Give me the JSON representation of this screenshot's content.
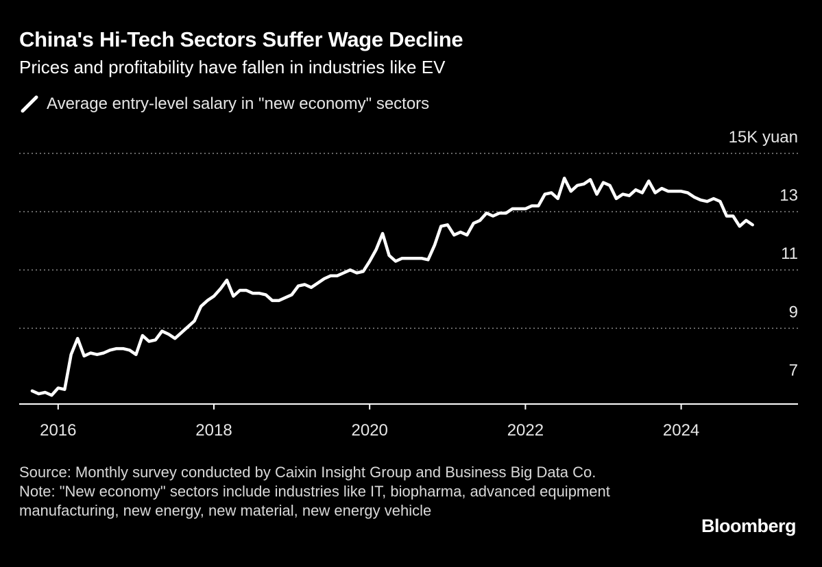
{
  "header": {
    "title": "China's Hi-Tech Sectors Suffer Wage Decline",
    "subtitle": "Prices and profitability have fallen in industries like EV"
  },
  "footer": {
    "source": "Source: Monthly survey conducted by Caixin Insight Group and Business Big Data Co.",
    "note": "Note: \"New economy\" sectors include industries like IT, biopharma, advanced equipment manufacturing, new energy, new material, new energy vehicle",
    "brand": "Bloomberg"
  },
  "colors": {
    "background": "#000000",
    "line": "#ffffff",
    "grid": "#8a8a8a",
    "axis": "#ffffff"
  },
  "chart_data": {
    "type": "line",
    "legend": {
      "position": "top-left"
    },
    "series": [
      {
        "name": "Average entry-level salary in \"new economy\" sectors",
        "unit": "yuan",
        "points": [
          [
            "2015-09",
            6.85
          ],
          [
            "2015-10",
            6.75
          ],
          [
            "2015-11",
            6.8
          ],
          [
            "2015-12",
            6.7
          ],
          [
            "2016-01",
            6.95
          ],
          [
            "2016-02",
            6.9
          ],
          [
            "2016-03",
            8.1
          ],
          [
            "2016-04",
            8.65
          ],
          [
            "2016-05",
            8.05
          ],
          [
            "2016-06",
            8.15
          ],
          [
            "2016-07",
            8.1
          ],
          [
            "2016-08",
            8.15
          ],
          [
            "2016-09",
            8.25
          ],
          [
            "2016-10",
            8.3
          ],
          [
            "2016-11",
            8.3
          ],
          [
            "2016-12",
            8.25
          ],
          [
            "2017-01",
            8.1
          ],
          [
            "2017-02",
            8.75
          ],
          [
            "2017-03",
            8.55
          ],
          [
            "2017-04",
            8.6
          ],
          [
            "2017-05",
            8.9
          ],
          [
            "2017-06",
            8.8
          ],
          [
            "2017-07",
            8.65
          ],
          [
            "2017-08",
            8.85
          ],
          [
            "2017-09",
            9.05
          ],
          [
            "2017-10",
            9.25
          ],
          [
            "2017-11",
            9.75
          ],
          [
            "2017-12",
            9.95
          ],
          [
            "2018-01",
            10.1
          ],
          [
            "2018-02",
            10.35
          ],
          [
            "2018-03",
            10.65
          ],
          [
            "2018-04",
            10.1
          ],
          [
            "2018-05",
            10.3
          ],
          [
            "2018-06",
            10.3
          ],
          [
            "2018-07",
            10.2
          ],
          [
            "2018-08",
            10.2
          ],
          [
            "2018-09",
            10.15
          ],
          [
            "2018-10",
            9.95
          ],
          [
            "2018-11",
            9.95
          ],
          [
            "2018-12",
            10.05
          ],
          [
            "2019-01",
            10.15
          ],
          [
            "2019-02",
            10.45
          ],
          [
            "2019-03",
            10.5
          ],
          [
            "2019-04",
            10.4
          ],
          [
            "2019-05",
            10.55
          ],
          [
            "2019-06",
            10.7
          ],
          [
            "2019-07",
            10.8
          ],
          [
            "2019-08",
            10.8
          ],
          [
            "2019-09",
            10.9
          ],
          [
            "2019-10",
            11.0
          ],
          [
            "2019-11",
            10.9
          ],
          [
            "2019-12",
            10.95
          ],
          [
            "2020-01",
            11.3
          ],
          [
            "2020-02",
            11.7
          ],
          [
            "2020-03",
            12.25
          ],
          [
            "2020-04",
            11.5
          ],
          [
            "2020-05",
            11.3
          ],
          [
            "2020-06",
            11.4
          ],
          [
            "2020-07",
            11.4
          ],
          [
            "2020-08",
            11.4
          ],
          [
            "2020-09",
            11.4
          ],
          [
            "2020-10",
            11.35
          ],
          [
            "2020-11",
            11.85
          ],
          [
            "2020-12",
            12.5
          ],
          [
            "2021-01",
            12.55
          ],
          [
            "2021-02",
            12.2
          ],
          [
            "2021-03",
            12.3
          ],
          [
            "2021-04",
            12.2
          ],
          [
            "2021-05",
            12.6
          ],
          [
            "2021-06",
            12.7
          ],
          [
            "2021-07",
            12.95
          ],
          [
            "2021-08",
            12.85
          ],
          [
            "2021-09",
            12.95
          ],
          [
            "2021-10",
            12.95
          ],
          [
            "2021-11",
            13.1
          ],
          [
            "2021-12",
            13.1
          ],
          [
            "2022-01",
            13.1
          ],
          [
            "2022-02",
            13.2
          ],
          [
            "2022-03",
            13.2
          ],
          [
            "2022-04",
            13.6
          ],
          [
            "2022-05",
            13.65
          ],
          [
            "2022-06",
            13.45
          ],
          [
            "2022-07",
            14.15
          ],
          [
            "2022-08",
            13.7
          ],
          [
            "2022-09",
            13.9
          ],
          [
            "2022-10",
            13.95
          ],
          [
            "2022-11",
            14.1
          ],
          [
            "2022-12",
            13.6
          ],
          [
            "2023-01",
            14.0
          ],
          [
            "2023-02",
            13.9
          ],
          [
            "2023-03",
            13.45
          ],
          [
            "2023-04",
            13.6
          ],
          [
            "2023-05",
            13.55
          ],
          [
            "2023-06",
            13.75
          ],
          [
            "2023-07",
            13.65
          ],
          [
            "2023-08",
            14.05
          ],
          [
            "2023-09",
            13.65
          ],
          [
            "2023-10",
            13.8
          ],
          [
            "2023-11",
            13.7
          ],
          [
            "2023-12",
            13.7
          ],
          [
            "2024-01",
            13.7
          ],
          [
            "2024-02",
            13.65
          ],
          [
            "2024-03",
            13.5
          ],
          [
            "2024-04",
            13.4
          ],
          [
            "2024-05",
            13.35
          ],
          [
            "2024-06",
            13.45
          ],
          [
            "2024-07",
            13.35
          ],
          [
            "2024-08",
            12.85
          ],
          [
            "2024-09",
            12.85
          ],
          [
            "2024-10",
            12.5
          ],
          [
            "2024-11",
            12.7
          ],
          [
            "2024-12",
            12.55
          ]
        ]
      }
    ],
    "x_axis": {
      "range": [
        "2015-07",
        "2025-07"
      ],
      "ticks": [
        {
          "value": "2016-01",
          "label": "2016"
        },
        {
          "value": "2018-01",
          "label": "2018"
        },
        {
          "value": "2020-01",
          "label": "2020"
        },
        {
          "value": "2022-01",
          "label": "2022"
        },
        {
          "value": "2024-01",
          "label": "2024"
        }
      ]
    },
    "y_axis": {
      "range": [
        6.4,
        15
      ],
      "side": "right",
      "ticks": [
        {
          "value": 15,
          "label": "15K yuan"
        },
        {
          "value": 13,
          "label": "13"
        },
        {
          "value": 11,
          "label": "11"
        },
        {
          "value": 9,
          "label": "9"
        },
        {
          "value": 7,
          "label": "7"
        }
      ],
      "gridlines": [
        15,
        13,
        11,
        9
      ],
      "grid_style": "dotted"
    }
  }
}
